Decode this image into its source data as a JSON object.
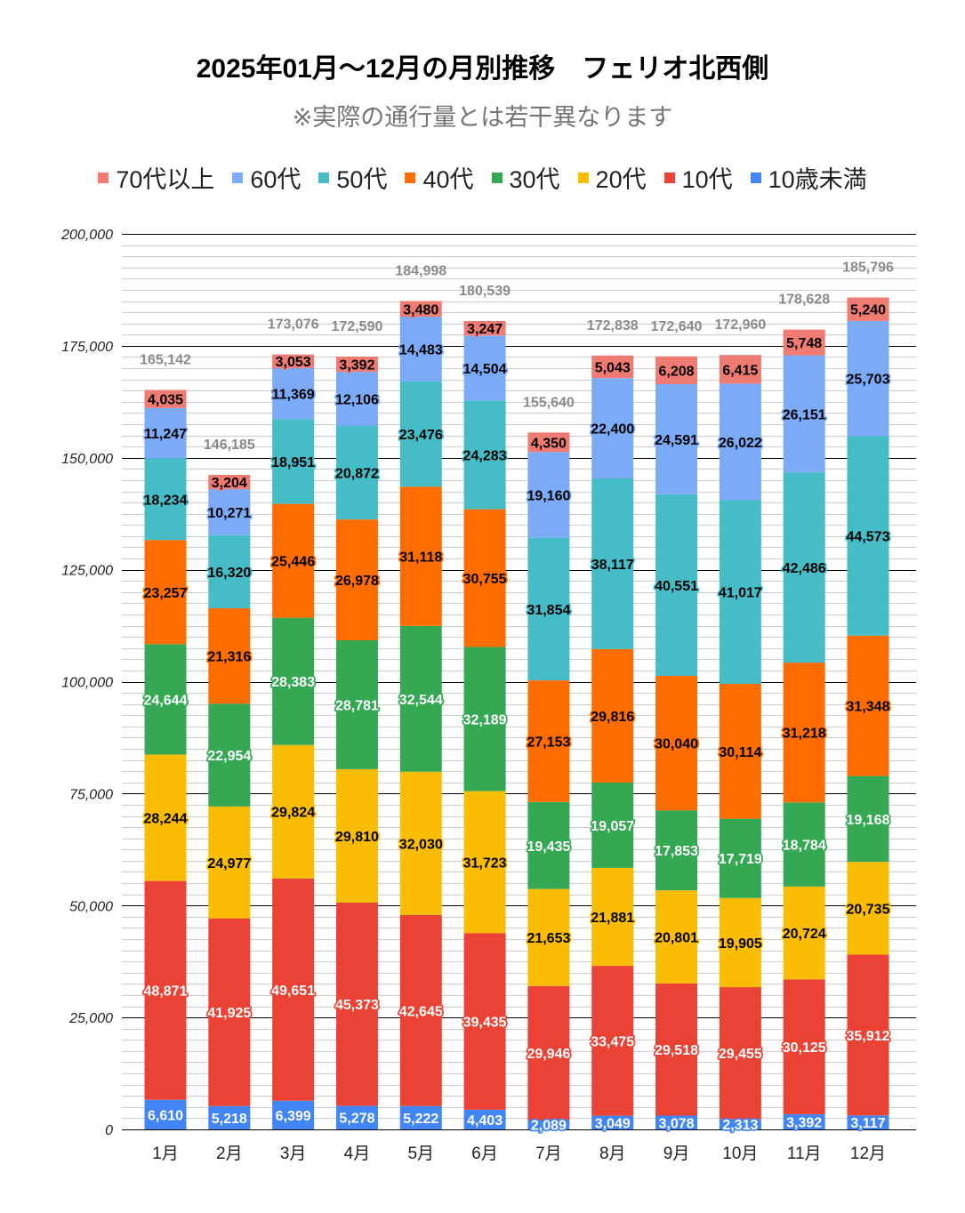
{
  "chart_data": {
    "type": "bar",
    "stacked": true,
    "title": "2025年01月～12月の月別推移　フェリオ北西側",
    "subtitle": "※実際の通行量とは若干異なります",
    "xlabel": "",
    "ylabel": "",
    "ylim": [
      0,
      200000
    ],
    "yticks": [
      0,
      25000,
      50000,
      75000,
      100000,
      125000,
      150000,
      175000,
      200000
    ],
    "ytick_labels": [
      "0",
      "25,000",
      "50,000",
      "75,000",
      "100,000",
      "125,000",
      "150,000",
      "175,000",
      "200,000"
    ],
    "grid": true,
    "legend_position": "top",
    "categories": [
      "1月",
      "2月",
      "3月",
      "4月",
      "5月",
      "6月",
      "7月",
      "8月",
      "9月",
      "10月",
      "11月",
      "12月"
    ],
    "series": [
      {
        "name": "10歳未満",
        "color": "#4285f4",
        "label_color": "#ffffff",
        "values": [
          6610,
          5218,
          6399,
          5278,
          5222,
          4403,
          2089,
          3049,
          3078,
          2313,
          3392,
          3117
        ]
      },
      {
        "name": "10代",
        "color": "#ea4335",
        "label_color": "#ffffff",
        "values": [
          48871,
          41925,
          49651,
          45373,
          42645,
          39435,
          29946,
          33475,
          29518,
          29455,
          30125,
          35912
        ]
      },
      {
        "name": "20代",
        "color": "#fbbc04",
        "label_color": "#000000",
        "values": [
          28244,
          24977,
          29824,
          29810,
          32030,
          31723,
          21653,
          21881,
          20801,
          19905,
          20724,
          20735
        ]
      },
      {
        "name": "30代",
        "color": "#34a853",
        "label_color": "#ffffff",
        "values": [
          24644,
          22954,
          28383,
          28781,
          32544,
          32189,
          19435,
          19057,
          17853,
          17719,
          18784,
          19168
        ]
      },
      {
        "name": "40代",
        "color": "#ff6d01",
        "label_color": "#000000",
        "values": [
          23257,
          21316,
          25446,
          26978,
          31118,
          30755,
          27153,
          29816,
          30040,
          30114,
          31218,
          31348
        ]
      },
      {
        "name": "50代",
        "color": "#46bdc6",
        "label_color": "#000000",
        "values": [
          18234,
          16320,
          18951,
          20872,
          23476,
          24283,
          31854,
          38117,
          40551,
          41017,
          42486,
          44573
        ]
      },
      {
        "name": "60代",
        "color": "#7baaf7",
        "label_color": "#000000",
        "values": [
          11247,
          10271,
          11369,
          12106,
          14483,
          14504,
          19160,
          22400,
          24591,
          26022,
          26151,
          25703
        ]
      },
      {
        "name": "70代以上",
        "color": "#f07b72",
        "label_color": "#000000",
        "values": [
          4035,
          3204,
          3053,
          3392,
          3480,
          3247,
          4350,
          5043,
          6208,
          6415,
          5748,
          5240
        ]
      }
    ],
    "totals": [
      165142,
      146185,
      173076,
      172590,
      184998,
      180539,
      155640,
      172838,
      172640,
      172960,
      178628,
      185796
    ],
    "legend_order": [
      "70代以上",
      "60代",
      "50代",
      "40代",
      "30代",
      "20代",
      "10代",
      "10歳未満"
    ]
  }
}
